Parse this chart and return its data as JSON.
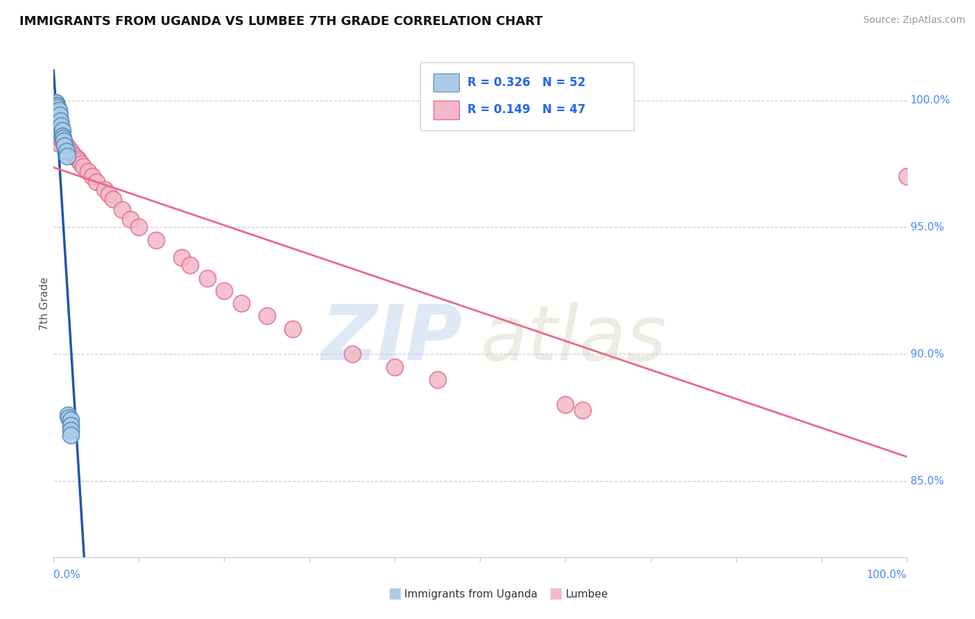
{
  "title": "IMMIGRANTS FROM UGANDA VS LUMBEE 7TH GRADE CORRELATION CHART",
  "source_text": "Source: ZipAtlas.com",
  "ylabel": "7th Grade",
  "legend_r": [
    0.326,
    0.149
  ],
  "legend_n": [
    52,
    47
  ],
  "blue_color": "#aacce8",
  "blue_edge": "#5588bb",
  "blue_line": "#2255aa",
  "pink_color": "#f4b8c8",
  "pink_edge": "#e07090",
  "pink_line": "#ee6688",
  "legend_r_color": "#2266ee",
  "background_color": "#ffffff",
  "grid_color": "#cccccc",
  "title_color": "#111111",
  "axis_label_color": "#4488ff",
  "watermark_blue": "#b8d0ea",
  "watermark_tan": "#d4cdb8",
  "blue_scatter_x": [
    0.0,
    0.0,
    0.0,
    0.001,
    0.001,
    0.001,
    0.001,
    0.001,
    0.001,
    0.001,
    0.001,
    0.002,
    0.002,
    0.002,
    0.002,
    0.002,
    0.002,
    0.002,
    0.003,
    0.003,
    0.003,
    0.003,
    0.003,
    0.003,
    0.003,
    0.003,
    0.004,
    0.004,
    0.004,
    0.004,
    0.004,
    0.005,
    0.005,
    0.005,
    0.005,
    0.006,
    0.007,
    0.008,
    0.009,
    0.01,
    0.01,
    0.011,
    0.012,
    0.013,
    0.015,
    0.016,
    0.017,
    0.018,
    0.02,
    0.02,
    0.02,
    0.02
  ],
  "blue_scatter_y": [
    0.998,
    0.997,
    0.996,
    0.999,
    0.998,
    0.997,
    0.996,
    0.995,
    0.994,
    0.993,
    0.992,
    0.999,
    0.998,
    0.997,
    0.995,
    0.993,
    0.991,
    0.989,
    0.999,
    0.998,
    0.997,
    0.996,
    0.994,
    0.992,
    0.99,
    0.988,
    0.998,
    0.996,
    0.994,
    0.992,
    0.989,
    0.997,
    0.995,
    0.993,
    0.99,
    0.996,
    0.994,
    0.992,
    0.99,
    0.988,
    0.986,
    0.985,
    0.984,
    0.982,
    0.98,
    0.978,
    0.876,
    0.875,
    0.874,
    0.872,
    0.87,
    0.868
  ],
  "pink_scatter_x": [
    0.001,
    0.001,
    0.002,
    0.002,
    0.003,
    0.003,
    0.004,
    0.004,
    0.005,
    0.005,
    0.006,
    0.006,
    0.008,
    0.01,
    0.012,
    0.015,
    0.018,
    0.02,
    0.022,
    0.025,
    0.028,
    0.03,
    0.032,
    0.035,
    0.04,
    0.045,
    0.05,
    0.06,
    0.065,
    0.07,
    0.08,
    0.09,
    0.1,
    0.12,
    0.15,
    0.16,
    0.18,
    0.2,
    0.22,
    0.25,
    0.28,
    0.35,
    0.4,
    0.45,
    0.6,
    0.62,
    1.0
  ],
  "pink_scatter_y": [
    0.99,
    0.988,
    0.99,
    0.987,
    0.989,
    0.986,
    0.988,
    0.985,
    0.987,
    0.984,
    0.986,
    0.983,
    0.985,
    0.984,
    0.983,
    0.982,
    0.981,
    0.98,
    0.979,
    0.978,
    0.977,
    0.976,
    0.975,
    0.974,
    0.972,
    0.97,
    0.968,
    0.965,
    0.963,
    0.961,
    0.957,
    0.953,
    0.95,
    0.945,
    0.938,
    0.935,
    0.93,
    0.925,
    0.92,
    0.915,
    0.91,
    0.9,
    0.895,
    0.89,
    0.88,
    0.878,
    0.97
  ]
}
